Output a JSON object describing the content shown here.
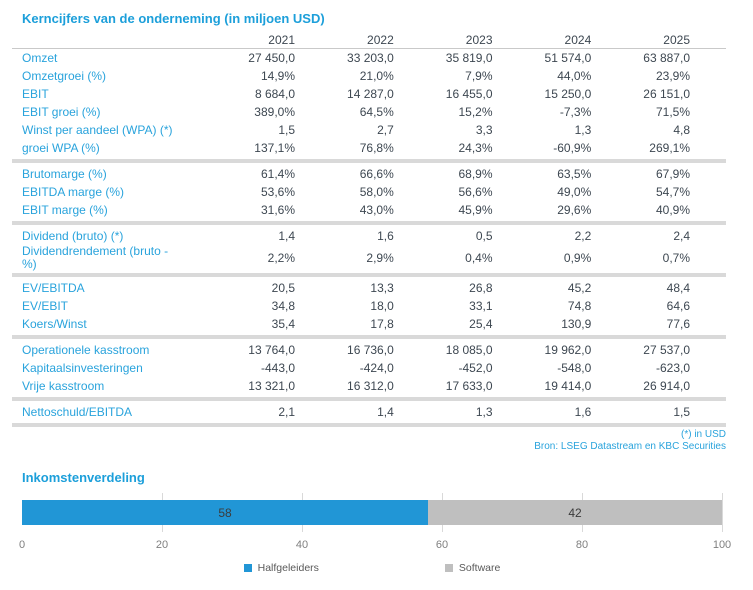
{
  "table": {
    "title": "Kerncijfers van de onderneming (in miljoen USD)",
    "years": [
      "2021",
      "2022",
      "2023",
      "2024",
      "2025"
    ],
    "groups": [
      {
        "rows": [
          {
            "label": "Omzet",
            "values": [
              "27 450,0",
              "33 203,0",
              "35 819,0",
              "51 574,0",
              "63 887,0"
            ]
          },
          {
            "label": "Omzetgroei (%)",
            "values": [
              "14,9%",
              "21,0%",
              "7,9%",
              "44,0%",
              "23,9%"
            ]
          },
          {
            "label": "EBIT",
            "values": [
              "8 684,0",
              "14 287,0",
              "16 455,0",
              "15 250,0",
              "26 151,0"
            ]
          },
          {
            "label": "EBIT groei (%)",
            "values": [
              "389,0%",
              "64,5%",
              "15,2%",
              "-7,3%",
              "71,5%"
            ]
          },
          {
            "label": "Winst per aandeel (WPA) (*)",
            "values": [
              "1,5",
              "2,7",
              "3,3",
              "1,3",
              "4,8"
            ]
          },
          {
            "label": "groei WPA (%)",
            "values": [
              "137,1%",
              "76,8%",
              "24,3%",
              "-60,9%",
              "269,1%"
            ]
          }
        ]
      },
      {
        "rows": [
          {
            "label": "Brutomarge (%)",
            "values": [
              "61,4%",
              "66,6%",
              "68,9%",
              "63,5%",
              "67,9%"
            ]
          },
          {
            "label": "EBITDA marge (%)",
            "values": [
              "53,6%",
              "58,0%",
              "56,6%",
              "49,0%",
              "54,7%"
            ]
          },
          {
            "label": "EBIT marge (%)",
            "values": [
              "31,6%",
              "43,0%",
              "45,9%",
              "29,6%",
              "40,9%"
            ]
          }
        ]
      },
      {
        "rows": [
          {
            "label": "Dividend (bruto) (*)",
            "values": [
              "1,4",
              "1,6",
              "0,5",
              "2,2",
              "2,4"
            ]
          },
          {
            "label": "Dividendrendement (bruto -\n%)",
            "values": [
              "2,2%",
              "2,9%",
              "0,4%",
              "0,9%",
              "0,7%"
            ]
          }
        ]
      },
      {
        "rows": [
          {
            "label": "EV/EBITDA",
            "values": [
              "20,5",
              "13,3",
              "26,8",
              "45,2",
              "48,4"
            ]
          },
          {
            "label": "EV/EBIT",
            "values": [
              "34,8",
              "18,0",
              "33,1",
              "74,8",
              "64,6"
            ]
          },
          {
            "label": "Koers/Winst",
            "values": [
              "35,4",
              "17,8",
              "25,4",
              "130,9",
              "77,6"
            ]
          }
        ]
      },
      {
        "rows": [
          {
            "label": "Operationele kasstroom",
            "values": [
              "13 764,0",
              "16 736,0",
              "18 085,0",
              "19 962,0",
              "27 537,0"
            ]
          },
          {
            "label": "Kapitaalsinvesteringen",
            "values": [
              "-443,0",
              "-424,0",
              "-452,0",
              "-548,0",
              "-623,0"
            ]
          },
          {
            "label": "Vrije kasstroom",
            "values": [
              "13 321,0",
              "16 312,0",
              "17 633,0",
              "19 414,0",
              "26 914,0"
            ]
          }
        ]
      },
      {
        "rows": [
          {
            "label": "Nettoschuld/EBITDA",
            "values": [
              "2,1",
              "1,4",
              "1,3",
              "1,6",
              "1,5"
            ]
          }
        ]
      }
    ],
    "footnotes": [
      "(*) in USD",
      "Bron: LSEG Datastream en KBC Securities"
    ]
  },
  "chart": {
    "title": "Inkomstenverdeling"
  },
  "chart_data": {
    "type": "bar",
    "orientation": "horizontal-stacked",
    "categories": [
      "Inkomstenverdeling"
    ],
    "series": [
      {
        "name": "Halfgeleiders",
        "values": [
          58
        ],
        "color": "#2196D6"
      },
      {
        "name": "Software",
        "values": [
          42
        ],
        "color": "#BFBFBF"
      }
    ],
    "title": "Inkomstenverdeling",
    "xlabel": "",
    "ylabel": "",
    "xlim": [
      0,
      100
    ],
    "xticks": [
      0,
      20,
      40,
      60,
      80,
      100
    ],
    "grid": true,
    "legend_position": "bottom"
  },
  "colors": {
    "accent_blue": "#29A3DC",
    "bar_blue": "#2196D6",
    "bar_gray": "#BFBFBF",
    "separator_gray": "#D9D9D9",
    "text_dark": "#3D4751"
  }
}
